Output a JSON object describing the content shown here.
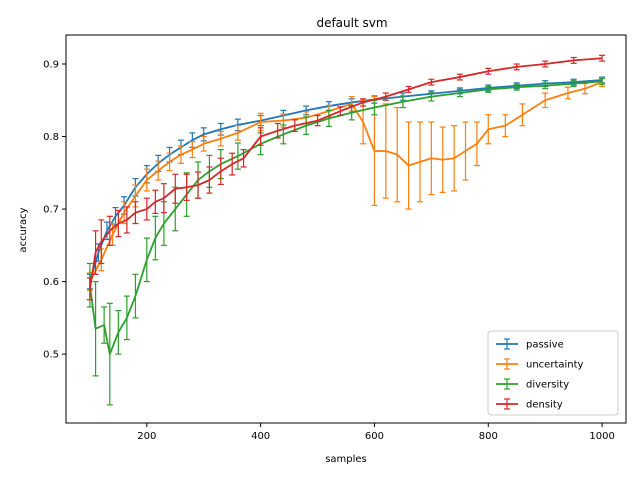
{
  "chart_data": {
    "type": "line",
    "title": "default svm",
    "xlabel": "samples",
    "ylabel": "accuracy",
    "xlim": [
      58,
      1042
    ],
    "ylim": [
      0.405,
      0.94
    ],
    "xticks": [
      200,
      400,
      600,
      800,
      1000
    ],
    "yticks": [
      0.5,
      0.6,
      0.7,
      0.8,
      0.9
    ],
    "xtick_labels": [
      "200",
      "400",
      "600",
      "800",
      "1000"
    ],
    "ytick_labels": [
      "0.5",
      "0.6",
      "0.7",
      "0.8",
      "0.9"
    ],
    "legend_position": "lower-right",
    "error_bars": true,
    "series": [
      {
        "name": "passive",
        "color": "#1f77b4",
        "points": [
          [
            100,
            0.6,
            0.01
          ],
          [
            115,
            0.64,
            0.012
          ],
          [
            130,
            0.67,
            0.012
          ],
          [
            145,
            0.69,
            0.012
          ],
          [
            160,
            0.705,
            0.012
          ],
          [
            180,
            0.73,
            0.012
          ],
          [
            200,
            0.748,
            0.012
          ],
          [
            220,
            0.763,
            0.011
          ],
          [
            240,
            0.775,
            0.01
          ],
          [
            260,
            0.785,
            0.01
          ],
          [
            280,
            0.795,
            0.01
          ],
          [
            300,
            0.803,
            0.009
          ],
          [
            330,
            0.81,
            0.008
          ],
          [
            360,
            0.816,
            0.008
          ],
          [
            400,
            0.822,
            0.007
          ],
          [
            440,
            0.829,
            0.007
          ],
          [
            480,
            0.836,
            0.006
          ],
          [
            520,
            0.842,
            0.006
          ],
          [
            560,
            0.847,
            0.005
          ],
          [
            600,
            0.851,
            0.005
          ],
          [
            650,
            0.855,
            0.005
          ],
          [
            700,
            0.859,
            0.004
          ],
          [
            750,
            0.863,
            0.004
          ],
          [
            800,
            0.867,
            0.004
          ],
          [
            850,
            0.87,
            0.004
          ],
          [
            900,
            0.873,
            0.004
          ],
          [
            950,
            0.875,
            0.004
          ],
          [
            1000,
            0.878,
            0.004
          ]
        ]
      },
      {
        "name": "uncertainty",
        "color": "#ff7f0e",
        "points": [
          [
            100,
            0.6,
            0.012
          ],
          [
            120,
            0.63,
            0.015
          ],
          [
            140,
            0.665,
            0.015
          ],
          [
            160,
            0.695,
            0.015
          ],
          [
            180,
            0.718,
            0.015
          ],
          [
            200,
            0.74,
            0.015
          ],
          [
            220,
            0.753,
            0.013
          ],
          [
            240,
            0.765,
            0.012
          ],
          [
            260,
            0.775,
            0.012
          ],
          [
            280,
            0.782,
            0.011
          ],
          [
            300,
            0.79,
            0.01
          ],
          [
            330,
            0.797,
            0.01
          ],
          [
            360,
            0.805,
            0.01
          ],
          [
            400,
            0.82,
            0.012
          ],
          [
            440,
            0.822,
            0.009
          ],
          [
            480,
            0.826,
            0.008
          ],
          [
            520,
            0.835,
            0.008
          ],
          [
            560,
            0.845,
            0.01
          ],
          [
            580,
            0.82,
            0.03
          ],
          [
            600,
            0.78,
            0.075
          ],
          [
            620,
            0.78,
            0.065
          ],
          [
            640,
            0.775,
            0.065
          ],
          [
            660,
            0.76,
            0.06
          ],
          [
            680,
            0.765,
            0.055
          ],
          [
            700,
            0.77,
            0.05
          ],
          [
            720,
            0.768,
            0.045
          ],
          [
            740,
            0.77,
            0.045
          ],
          [
            760,
            0.78,
            0.04
          ],
          [
            780,
            0.79,
            0.03
          ],
          [
            800,
            0.81,
            0.02
          ],
          [
            830,
            0.815,
            0.015
          ],
          [
            860,
            0.83,
            0.015
          ],
          [
            900,
            0.85,
            0.01
          ],
          [
            940,
            0.86,
            0.008
          ],
          [
            970,
            0.866,
            0.007
          ],
          [
            1000,
            0.875,
            0.006
          ]
        ]
      },
      {
        "name": "diversity",
        "color": "#2ca02c",
        "points": [
          [
            100,
            0.595,
            0.03
          ],
          [
            110,
            0.535,
            0.065
          ],
          [
            125,
            0.54,
            0.025
          ],
          [
            135,
            0.5,
            0.07
          ],
          [
            150,
            0.53,
            0.03
          ],
          [
            165,
            0.55,
            0.03
          ],
          [
            180,
            0.58,
            0.03
          ],
          [
            200,
            0.63,
            0.03
          ],
          [
            215,
            0.66,
            0.03
          ],
          [
            230,
            0.68,
            0.03
          ],
          [
            250,
            0.7,
            0.03
          ],
          [
            270,
            0.72,
            0.03
          ],
          [
            290,
            0.74,
            0.025
          ],
          [
            310,
            0.752,
            0.022
          ],
          [
            330,
            0.762,
            0.02
          ],
          [
            360,
            0.773,
            0.018
          ],
          [
            400,
            0.79,
            0.015
          ],
          [
            440,
            0.803,
            0.013
          ],
          [
            480,
            0.815,
            0.012
          ],
          [
            520,
            0.825,
            0.011
          ],
          [
            560,
            0.833,
            0.01
          ],
          [
            600,
            0.84,
            0.01
          ],
          [
            650,
            0.848,
            0.008
          ],
          [
            700,
            0.855,
            0.006
          ],
          [
            750,
            0.86,
            0.005
          ],
          [
            800,
            0.865,
            0.004
          ],
          [
            850,
            0.868,
            0.004
          ],
          [
            900,
            0.87,
            0.004
          ],
          [
            950,
            0.873,
            0.004
          ],
          [
            1000,
            0.876,
            0.004
          ]
        ]
      },
      {
        "name": "density",
        "color": "#d62728",
        "points": [
          [
            100,
            0.59,
            0.015
          ],
          [
            110,
            0.64,
            0.03
          ],
          [
            120,
            0.655,
            0.03
          ],
          [
            135,
            0.67,
            0.02
          ],
          [
            150,
            0.68,
            0.018
          ],
          [
            165,
            0.685,
            0.018
          ],
          [
            180,
            0.695,
            0.015
          ],
          [
            200,
            0.7,
            0.015
          ],
          [
            215,
            0.71,
            0.016
          ],
          [
            230,
            0.715,
            0.02
          ],
          [
            250,
            0.728,
            0.02
          ],
          [
            270,
            0.73,
            0.018
          ],
          [
            290,
            0.733,
            0.018
          ],
          [
            310,
            0.74,
            0.018
          ],
          [
            330,
            0.752,
            0.018
          ],
          [
            350,
            0.762,
            0.015
          ],
          [
            370,
            0.77,
            0.012
          ],
          [
            400,
            0.8,
            0.012
          ],
          [
            430,
            0.808,
            0.01
          ],
          [
            460,
            0.815,
            0.008
          ],
          [
            500,
            0.822,
            0.007
          ],
          [
            540,
            0.835,
            0.006
          ],
          [
            580,
            0.847,
            0.005
          ],
          [
            620,
            0.855,
            0.005
          ],
          [
            660,
            0.865,
            0.004
          ],
          [
            700,
            0.875,
            0.004
          ],
          [
            750,
            0.882,
            0.004
          ],
          [
            800,
            0.89,
            0.004
          ],
          [
            850,
            0.896,
            0.004
          ],
          [
            900,
            0.9,
            0.004
          ],
          [
            950,
            0.905,
            0.004
          ],
          [
            1000,
            0.908,
            0.004
          ]
        ]
      }
    ]
  }
}
